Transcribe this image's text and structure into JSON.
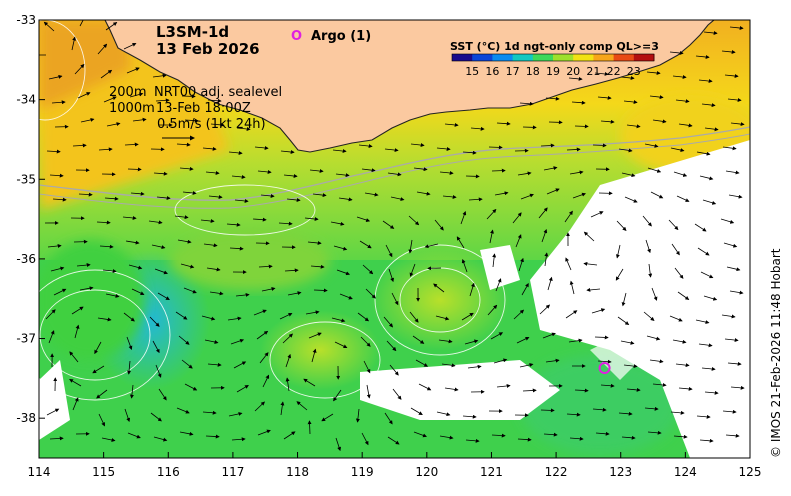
{
  "product": {
    "line1": "L3SM-1d",
    "date": "13 Feb 2026"
  },
  "argo": {
    "symbol": "O",
    "label": "Argo (1)",
    "lon": 122.75,
    "lat": -37.37
  },
  "info": {
    "depth_label": "200m",
    "product_label": "NRT00 adj. sealevel",
    "depth2_label": "1000m",
    "time_label": "13-Feb 18:00Z",
    "scale_label": "0.5m/s (1kt 24h)"
  },
  "colorbar": {
    "title": "SST (°C) 1d ngt-only comp QL>=3",
    "ticks": [
      "15",
      "16",
      "17",
      "18",
      "19",
      "20",
      "21",
      "22",
      "23"
    ],
    "colors": [
      "#1a0a8c",
      "#0b45d8",
      "#0a8bf0",
      "#12c8c0",
      "#3ed85a",
      "#9ee02c",
      "#f2e214",
      "#f7a61a",
      "#e84a14",
      "#b40f0f"
    ]
  },
  "axes": {
    "x_ticks": [
      "114",
      "115",
      "116",
      "117",
      "118",
      "119",
      "120",
      "121",
      "122",
      "123",
      "124",
      "125"
    ],
    "y_ticks": [
      "-33",
      "-34",
      "-35",
      "-36",
      "-37",
      "-38"
    ],
    "lon_range": [
      114,
      125
    ],
    "lat_range": [
      -38.5,
      -33
    ]
  },
  "credit": "© IMOS 21-Feb-2026 11:48 Hobart",
  "colors": {
    "land": "#fbc9a0",
    "coast": "#222222",
    "argo": "#e020e0",
    "arrow": "#000000",
    "contour": "#ffffff"
  }
}
